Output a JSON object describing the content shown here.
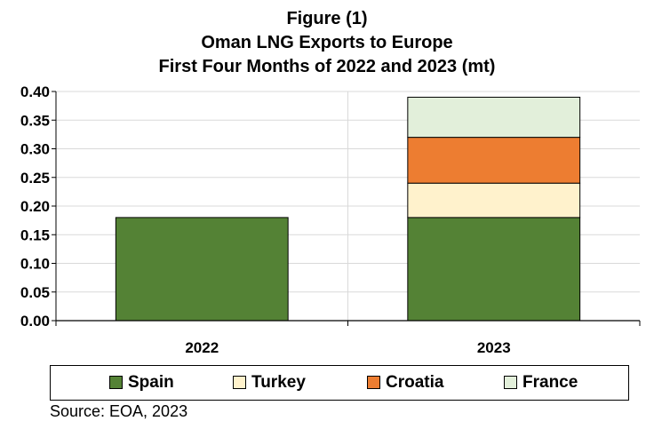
{
  "title": {
    "line1": "Figure (1)",
    "line2": "Oman LNG Exports to Europe",
    "line3": "First Four Months of 2022 and 2023 (mt)"
  },
  "source": "Source: EOA, 2023",
  "colors": {
    "Spain": "#548235",
    "Turkey": "#FFF2CC",
    "Croatia": "#ED7D31",
    "France": "#E2EFDA",
    "grid": "#D9D9D9"
  },
  "chart_data": {
    "type": "bar",
    "stacked": true,
    "categories": [
      "2022",
      "2023"
    ],
    "series": [
      {
        "name": "Spain",
        "values": [
          0.18,
          0.18
        ]
      },
      {
        "name": "Turkey",
        "values": [
          0,
          0.06
        ]
      },
      {
        "name": "Croatia",
        "values": [
          0,
          0.08
        ]
      },
      {
        "name": "France",
        "values": [
          0,
          0.07
        ]
      }
    ],
    "ylim": [
      0,
      0.4
    ],
    "yticks": [
      "0.00",
      "0.05",
      "0.10",
      "0.15",
      "0.20",
      "0.25",
      "0.30",
      "0.35",
      "0.40"
    ],
    "grid": true,
    "legend": "bottom"
  }
}
